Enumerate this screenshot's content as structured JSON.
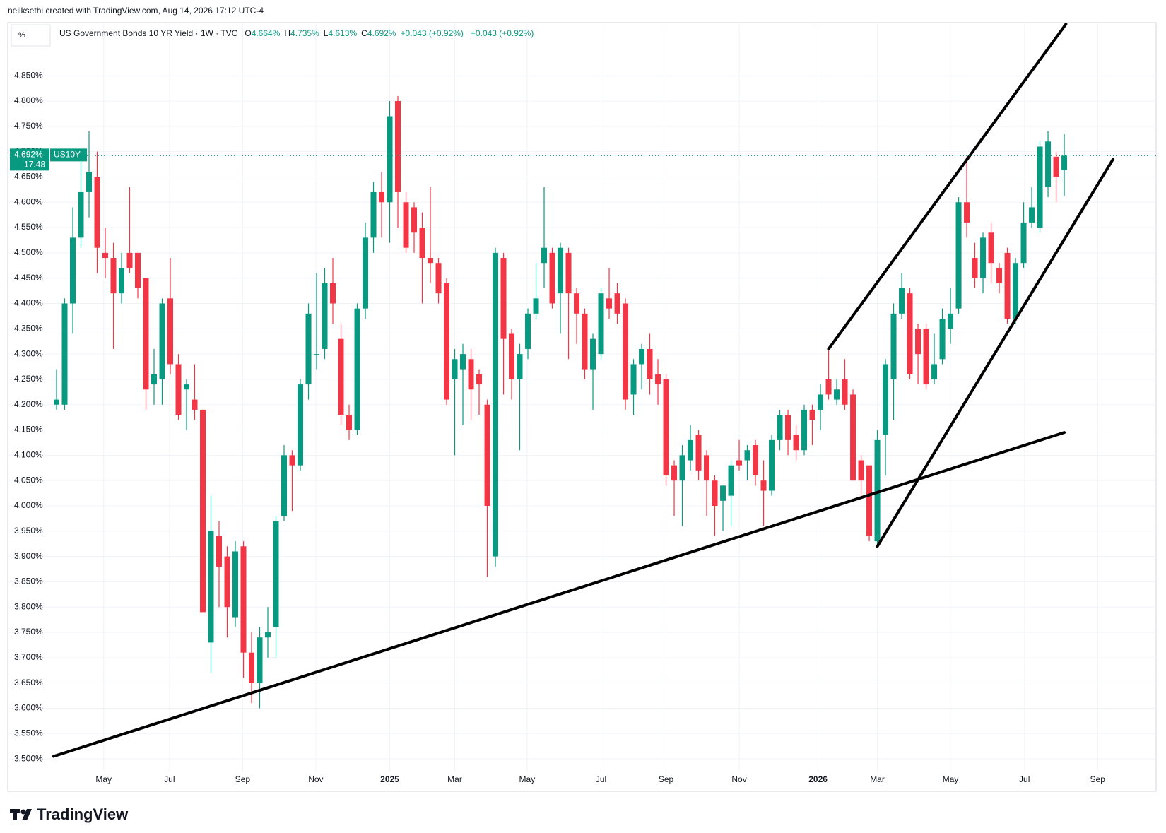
{
  "header": {
    "credit": "neilksethi created with TradingView.com, Aug 14, 2026 17:12 UTC-4",
    "unit": "%",
    "symbol_title": "US Government Bonds 10 YR Yield · 1W · TVC",
    "ohlc_letters": [
      "O",
      "H",
      "L",
      "C"
    ],
    "ohlc_values": [
      "4.664%",
      "4.735%",
      "4.613%",
      "4.692%"
    ],
    "change": "+0.043 (+0.92%)",
    "change2": "+0.043 (+0.92%)"
  },
  "price_label": {
    "price": "4.692%",
    "symbol": "US10Y",
    "countdown": "17:48"
  },
  "footer": {
    "brand": "TradingView"
  },
  "chart_data": {
    "type": "candlestick",
    "up_color": "#089981",
    "down_color": "#f23645",
    "grid": true,
    "ylim": [
      3.475,
      4.955
    ],
    "yticks": [
      {
        "value": 3.5,
        "label": "3.500%"
      },
      {
        "value": 3.55,
        "label": "3.550%"
      },
      {
        "value": 3.6,
        "label": "3.600%"
      },
      {
        "value": 3.65,
        "label": "3.650%"
      },
      {
        "value": 3.7,
        "label": "3.700%"
      },
      {
        "value": 3.75,
        "label": "3.750%"
      },
      {
        "value": 3.8,
        "label": "3.800%"
      },
      {
        "value": 3.85,
        "label": "3.850%"
      },
      {
        "value": 3.9,
        "label": "3.900%"
      },
      {
        "value": 3.95,
        "label": "3.950%"
      },
      {
        "value": 4.0,
        "label": "4.000%"
      },
      {
        "value": 4.05,
        "label": "4.050%"
      },
      {
        "value": 4.1,
        "label": "4.100%"
      },
      {
        "value": 4.15,
        "label": "4.150%"
      },
      {
        "value": 4.2,
        "label": "4.200%"
      },
      {
        "value": 4.25,
        "label": "4.250%"
      },
      {
        "value": 4.3,
        "label": "4.300%"
      },
      {
        "value": 4.35,
        "label": "4.350%"
      },
      {
        "value": 4.4,
        "label": "4.400%"
      },
      {
        "value": 4.45,
        "label": "4.450%"
      },
      {
        "value": 4.5,
        "label": "4.500%"
      },
      {
        "value": 4.55,
        "label": "4.550%"
      },
      {
        "value": 4.6,
        "label": "4.600%"
      },
      {
        "value": 4.65,
        "label": "4.650%"
      },
      {
        "value": 4.7,
        "label": "4.700%"
      },
      {
        "value": 4.75,
        "label": "4.750%"
      },
      {
        "value": 4.8,
        "label": "4.800%"
      },
      {
        "value": 4.85,
        "label": "4.850%"
      }
    ],
    "xlim": [
      -6,
      135.3
    ],
    "xticks": [
      {
        "value": 5.8,
        "label": "May"
      },
      {
        "value": 13.9,
        "label": "Jul"
      },
      {
        "value": 22.9,
        "label": "Sep"
      },
      {
        "value": 31.9,
        "label": "Nov"
      },
      {
        "value": 41,
        "label": "2025"
      },
      {
        "value": 49,
        "label": "Mar"
      },
      {
        "value": 57.9,
        "label": "May"
      },
      {
        "value": 67,
        "label": "Jul"
      },
      {
        "value": 75,
        "label": "Sep"
      },
      {
        "value": 84,
        "label": "Nov"
      },
      {
        "value": 93.7,
        "label": "2026"
      },
      {
        "value": 101,
        "label": "Mar"
      },
      {
        "value": 110,
        "label": "May"
      },
      {
        "value": 119.1,
        "label": "Jul"
      },
      {
        "value": 128.1,
        "label": "Sep"
      }
    ],
    "open": [
      4.2,
      4.2,
      4.4,
      4.53,
      4.62,
      4.65,
      4.5,
      4.49,
      4.42,
      4.5,
      4.5,
      4.45,
      4.24,
      4.25,
      4.41,
      4.28,
      4.23,
      4.21,
      4.19,
      3.73,
      3.94,
      3.9,
      3.78,
      3.92,
      3.71,
      3.65,
      3.74,
      3.76,
      3.98,
      4.1,
      4.08,
      4.24,
      4.3,
      4.31,
      4.44,
      4.33,
      4.18,
      4.15,
      4.39,
      4.53,
      4.62,
      4.6,
      4.8,
      4.6,
      4.59,
      4.55,
      4.49,
      4.48,
      4.44,
      4.25,
      4.27,
      4.29,
      4.26,
      4.2,
      3.9,
      4.49,
      4.34,
      4.25,
      4.31,
      4.38,
      4.48,
      4.5,
      4.42,
      4.5,
      4.42,
      4.38,
      4.27,
      4.3,
      4.41,
      4.42,
      4.4,
      4.22,
      4.28,
      4.31,
      4.26,
      4.25,
      4.08,
      4.05,
      4.09,
      4.14,
      4.1,
      4.05,
      4.01,
      4.02,
      4.09,
      4.09,
      4.12,
      4.05,
      4.03,
      4.13,
      4.18,
      4.14,
      4.11,
      4.19,
      4.19,
      4.25,
      4.21,
      4.25,
      4.22,
      4.09,
      4.08,
      3.93,
      4.14,
      4.25,
      4.38,
      4.42,
      4.35,
      4.35,
      4.25,
      4.29,
      4.35,
      4.39,
      4.6,
      4.49,
      4.45,
      4.54,
      4.47,
      4.5,
      4.37,
      4.48,
      4.56,
      4.55,
      4.63,
      4.69,
      4.664
    ],
    "high": [
      4.27,
      4.41,
      4.59,
      4.7,
      4.74,
      4.7,
      4.55,
      4.52,
      4.5,
      4.63,
      4.5,
      4.45,
      4.31,
      4.41,
      4.49,
      4.3,
      4.25,
      4.28,
      4.19,
      4.02,
      3.97,
      3.92,
      3.93,
      3.93,
      3.75,
      3.76,
      3.8,
      3.98,
      4.12,
      4.11,
      4.25,
      4.4,
      4.46,
      4.47,
      4.49,
      4.36,
      4.2,
      4.4,
      4.56,
      4.64,
      4.66,
      4.8,
      4.81,
      4.62,
      4.6,
      4.58,
      4.63,
      4.49,
      4.45,
      4.31,
      4.32,
      4.31,
      4.27,
      4.21,
      4.51,
      4.5,
      4.35,
      4.32,
      4.39,
      4.48,
      4.63,
      4.51,
      4.52,
      4.51,
      4.43,
      4.39,
      4.34,
      4.43,
      4.47,
      4.44,
      4.41,
      4.29,
      4.32,
      4.34,
      4.29,
      4.26,
      4.09,
      4.12,
      4.16,
      4.15,
      4.11,
      4.06,
      4.04,
      4.09,
      4.13,
      4.12,
      4.13,
      4.09,
      4.14,
      4.19,
      4.19,
      4.16,
      4.2,
      4.2,
      4.24,
      4.31,
      4.25,
      4.29,
      4.23,
      4.1,
      4.08,
      4.15,
      4.29,
      4.4,
      4.46,
      4.43,
      4.36,
      4.36,
      4.34,
      4.39,
      4.43,
      4.61,
      4.69,
      4.52,
      4.54,
      4.56,
      4.48,
      4.51,
      4.49,
      4.6,
      4.63,
      4.72,
      4.74,
      4.7,
      4.735
    ],
    "low": [
      4.19,
      4.19,
      4.34,
      4.51,
      4.57,
      4.46,
      4.45,
      4.31,
      4.4,
      4.46,
      4.41,
      4.19,
      4.2,
      4.2,
      4.26,
      4.17,
      4.15,
      4.17,
      3.79,
      3.67,
      3.8,
      3.74,
      3.76,
      3.66,
      3.61,
      3.6,
      3.7,
      3.7,
      3.97,
      3.99,
      4.07,
      4.21,
      4.27,
      4.29,
      4.36,
      4.16,
      4.13,
      4.14,
      4.37,
      4.5,
      4.53,
      4.52,
      4.55,
      4.5,
      4.5,
      4.4,
      4.44,
      4.4,
      4.2,
      4.1,
      4.16,
      4.17,
      4.18,
      3.86,
      3.88,
      4.22,
      4.21,
      4.11,
      4.29,
      4.37,
      4.43,
      4.39,
      4.34,
      4.29,
      4.32,
      4.25,
      4.19,
      4.29,
      4.37,
      4.36,
      4.19,
      4.18,
      4.23,
      4.22,
      4.2,
      4.04,
      3.98,
      3.96,
      4.07,
      4.05,
      3.98,
      3.94,
      3.95,
      3.96,
      4.07,
      4.05,
      4.04,
      3.96,
      4.02,
      4.11,
      4.1,
      4.09,
      4.1,
      4.12,
      4.15,
      4.21,
      4.2,
      4.19,
      4.05,
      4.02,
      3.93,
      3.92,
      4.06,
      4.17,
      4.37,
      4.25,
      4.24,
      4.23,
      4.24,
      4.28,
      4.32,
      4.38,
      4.53,
      4.43,
      4.42,
      4.44,
      4.42,
      4.36,
      4.36,
      4.47,
      4.55,
      4.54,
      4.61,
      4.6,
      4.613
    ],
    "close": [
      4.21,
      4.4,
      4.53,
      4.62,
      4.66,
      4.51,
      4.49,
      4.42,
      4.47,
      4.47,
      4.43,
      4.23,
      4.26,
      4.4,
      4.28,
      4.18,
      4.24,
      4.19,
      3.79,
      3.95,
      3.88,
      3.8,
      3.91,
      3.71,
      3.65,
      3.74,
      3.75,
      3.97,
      4.1,
      4.08,
      4.24,
      4.38,
      4.3,
      4.44,
      4.4,
      4.18,
      4.15,
      4.39,
      4.53,
      4.62,
      4.6,
      4.77,
      4.62,
      4.51,
      4.54,
      4.49,
      4.48,
      4.42,
      4.21,
      4.29,
      4.3,
      4.23,
      4.24,
      4.0,
      4.5,
      4.33,
      4.25,
      4.3,
      4.38,
      4.41,
      4.51,
      4.4,
      4.51,
      4.42,
      4.38,
      4.27,
      4.33,
      4.42,
      4.39,
      4.38,
      4.21,
      4.28,
      4.31,
      4.25,
      4.24,
      4.06,
      4.05,
      4.1,
      4.13,
      4.07,
      4.05,
      4.0,
      4.04,
      4.08,
      4.08,
      4.11,
      4.06,
      4.03,
      4.13,
      4.18,
      4.13,
      4.11,
      4.19,
      4.17,
      4.22,
      4.22,
      4.23,
      4.2,
      4.05,
      4.05,
      3.94,
      4.13,
      4.28,
      4.38,
      4.43,
      4.26,
      4.3,
      4.24,
      4.28,
      4.37,
      4.38,
      4.6,
      4.56,
      4.45,
      4.53,
      4.48,
      4.44,
      4.37,
      4.48,
      4.56,
      4.59,
      4.71,
      4.72,
      4.65,
      4.692
    ],
    "trendlines": [
      {
        "points": [
          [
            -0.36,
            3.505
          ],
          [
            124,
            4.145
          ]
        ]
      },
      {
        "points": [
          [
            95,
            4.31
          ],
          [
            124.2,
            4.952
          ]
        ]
      },
      {
        "points": [
          [
            101,
            3.92
          ],
          [
            130,
            4.685
          ]
        ]
      }
    ]
  }
}
